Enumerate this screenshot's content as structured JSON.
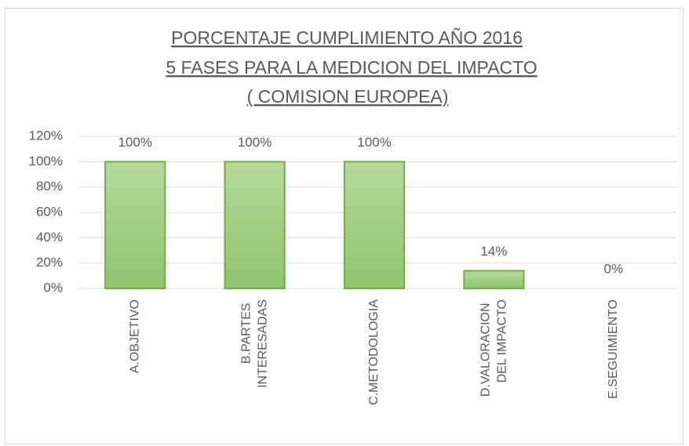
{
  "chart_data": {
    "type": "bar",
    "title": [
      "PORCENTAJE  CUMPLIMIENTO  AÑO 2016",
      "5 FASES PARA LA MEDICION DEL IMPACTO",
      "( COMISION EUROPEA)"
    ],
    "categories": [
      "A.OBJETIVO",
      "B.PARTES INTERESADAS",
      "C.METODOLOGIA",
      "D.VALORACION DEL IMPACTO",
      "E.SEGUIMIENTO"
    ],
    "values": [
      100,
      100,
      100,
      14,
      0
    ],
    "value_labels": [
      "100%",
      "100%",
      "100%",
      "14%",
      "0%"
    ],
    "color": "#a9d18e",
    "ylim": [
      0,
      120
    ],
    "yticks": [
      {
        "value": 0,
        "label": "0%"
      },
      {
        "value": 20,
        "label": "20%"
      },
      {
        "value": 40,
        "label": "40%"
      },
      {
        "value": 60,
        "label": "60%"
      },
      {
        "value": 80,
        "label": "80%"
      },
      {
        "value": 100,
        "label": "100%"
      },
      {
        "value": 120,
        "label": "120%"
      }
    ],
    "grid": true
  }
}
